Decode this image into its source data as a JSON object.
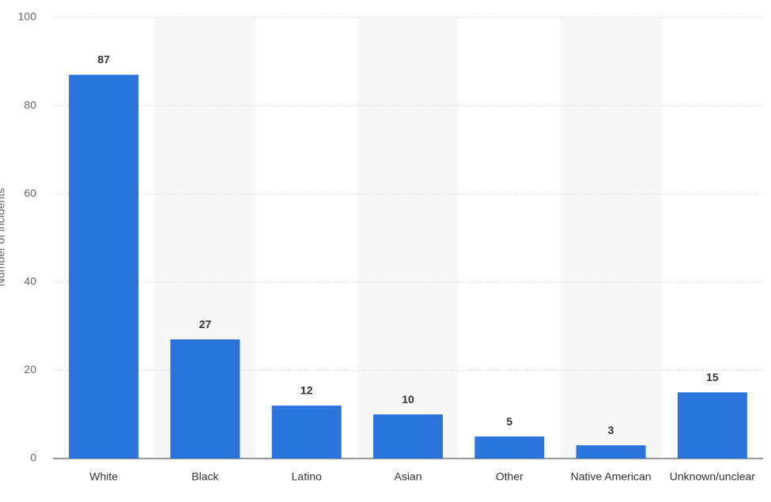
{
  "chart_data": {
    "type": "bar",
    "y_label": "Number of incidents",
    "categories": [
      "White",
      "Black",
      "Latino",
      "Asian",
      "Other",
      "Native American",
      "Unknown/unclear"
    ],
    "values": [
      87,
      27,
      12,
      10,
      5,
      3,
      15
    ],
    "color": "#2a74db",
    "ylim": [
      0,
      100
    ],
    "yticks": [
      0,
      20,
      40,
      60,
      80,
      100
    ],
    "grid": true
  }
}
